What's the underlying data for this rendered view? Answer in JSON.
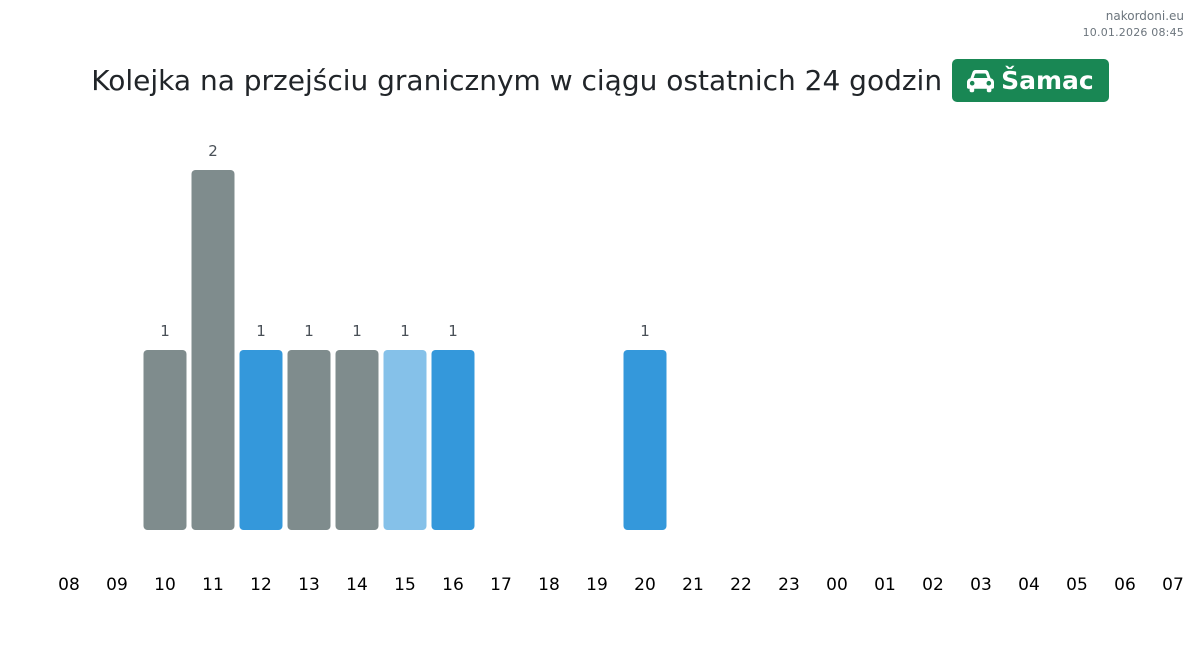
{
  "site": "nakordoni.eu",
  "timestamp": "10.01.2026 08:45",
  "title": "Kolejka na przejściu granicznym w ciągu ostatnich 24 godzin",
  "badge": {
    "label": "Šamac",
    "icon": "car-icon",
    "color": "#198754"
  },
  "colors": {
    "gray": "#7f8c8d",
    "blue": "#3498db",
    "light_blue": "#85c1e9"
  },
  "chart_data": {
    "type": "bar",
    "title": "Kolejka na przejściu granicznym w ciągu ostatnich 24 godzin",
    "categories": [
      "08",
      "09",
      "10",
      "11",
      "12",
      "13",
      "14",
      "15",
      "16",
      "17",
      "18",
      "19",
      "20",
      "21",
      "22",
      "23",
      "00",
      "01",
      "02",
      "03",
      "04",
      "05",
      "06",
      "07"
    ],
    "values": [
      null,
      null,
      1,
      2,
      1,
      1,
      1,
      1,
      1,
      null,
      null,
      null,
      1,
      null,
      null,
      null,
      null,
      null,
      null,
      null,
      null,
      null,
      null,
      null
    ],
    "bar_colors": [
      "",
      "",
      "gray",
      "gray",
      "blue",
      "gray",
      "gray",
      "light_blue",
      "blue",
      "",
      "",
      "",
      "blue",
      "",
      "",
      "",
      "",
      "",
      "",
      "",
      "",
      "",
      "",
      ""
    ],
    "ylim": [
      0,
      2
    ],
    "grid": false,
    "legend": "none"
  }
}
